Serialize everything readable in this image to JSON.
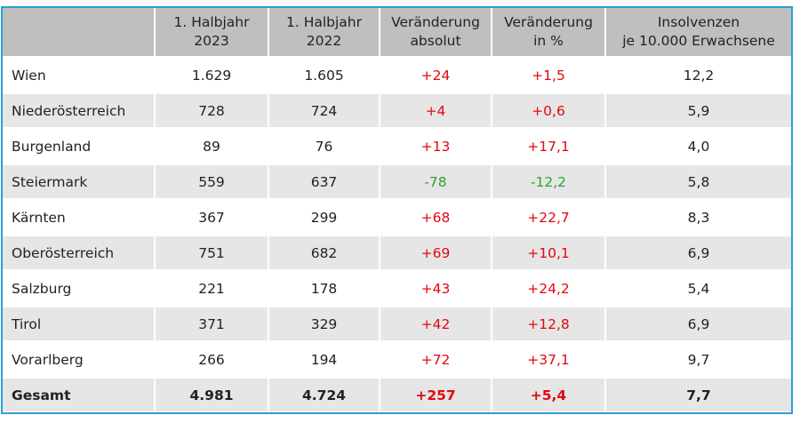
{
  "table": {
    "headers": [
      {
        "line1": "",
        "line2": ""
      },
      {
        "line1": "1. Halbjahr",
        "line2": "2023"
      },
      {
        "line1": "1. Halbjahr",
        "line2": "2022"
      },
      {
        "line1": "Veränderung",
        "line2": "absolut"
      },
      {
        "line1": "Veränderung",
        "line2": "in %"
      },
      {
        "line1": "Insolvenzen",
        "line2": "je 10.000 Erwachsene"
      }
    ],
    "rows": [
      {
        "region": "Wien",
        "h2023": "1.629",
        "h2022": "1.605",
        "abs": "+24",
        "pct": "+1,5",
        "per10k": "12,2"
      },
      {
        "region": "Niederösterreich",
        "h2023": "728",
        "h2022": "724",
        "abs": "+4",
        "pct": "+0,6",
        "per10k": "5,9"
      },
      {
        "region": "Burgenland",
        "h2023": "89",
        "h2022": "76",
        "abs": "+13",
        "pct": "+17,1",
        "per10k": "4,0"
      },
      {
        "region": "Steiermark",
        "h2023": "559",
        "h2022": "637",
        "abs": "-78",
        "pct": "-12,2",
        "per10k": "5,8"
      },
      {
        "region": "Kärnten",
        "h2023": "367",
        "h2022": "299",
        "abs": "+68",
        "pct": "+22,7",
        "per10k": "8,3"
      },
      {
        "region": "Oberösterreich",
        "h2023": "751",
        "h2022": "682",
        "abs": "+69",
        "pct": "+10,1",
        "per10k": "6,9"
      },
      {
        "region": "Salzburg",
        "h2023": "221",
        "h2022": "178",
        "abs": "+43",
        "pct": "+24,2",
        "per10k": "5,4"
      },
      {
        "region": "Tirol",
        "h2023": "371",
        "h2022": "329",
        "abs": "+42",
        "pct": "+12,8",
        "per10k": "6,9"
      },
      {
        "region": "Vorarlberg",
        "h2023": "266",
        "h2022": "194",
        "abs": "+72",
        "pct": "+37,1",
        "per10k": "9,7"
      },
      {
        "region": "Gesamt",
        "h2023": "4.981",
        "h2022": "4.724",
        "abs": "+257",
        "pct": "+5,4",
        "per10k": "7,7"
      }
    ]
  },
  "colors": {
    "border": "#2a9fd8",
    "header_bg": "#bfbfbf",
    "stripe_bg": "#e6e6e6",
    "increase": "#e3060f",
    "decrease": "#2ea32e"
  }
}
